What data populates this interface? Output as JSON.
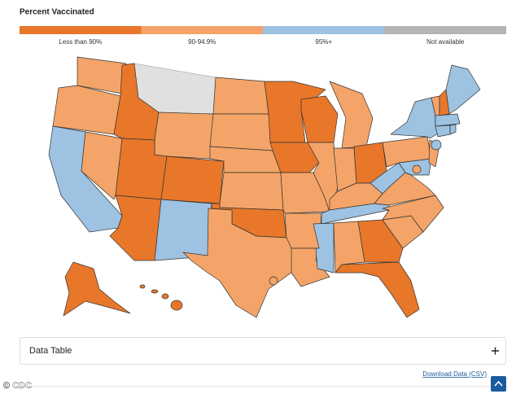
{
  "header": {
    "title": "Percent Vaccinated"
  },
  "legend": {
    "items": [
      {
        "label": "Less than 90%",
        "color": "#e8772a"
      },
      {
        "label": "90-94.9%",
        "color": "#f4a468"
      },
      {
        "label": "95%+",
        "color": "#9dc2e2"
      },
      {
        "label": "Not available",
        "color": "#b4b4b4"
      }
    ]
  },
  "data_table": {
    "label": "Data Table"
  },
  "download": {
    "label": "Download Data (CSV)"
  },
  "watermark": "© CDC"
}
